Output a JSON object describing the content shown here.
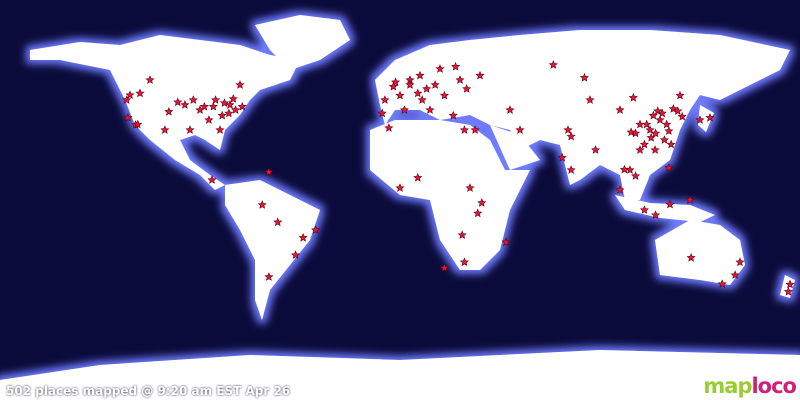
{
  "status_text": "502 places mapped @ 9:20 am EST Apr 26",
  "logo": {
    "part1": "map",
    "part2": "loco"
  },
  "colors": {
    "ocean": "#0b0b3b",
    "land": "#ffffff",
    "glow": "#6f7cff",
    "marker": "#e8173a",
    "logo1": "#9acd32",
    "logo2": "#d0207a"
  },
  "markers_lonlat": [
    [
      -121.5,
      47.2
    ],
    [
      -122.4,
      37
    ],
    [
      -119,
      33.8
    ],
    [
      -112.5,
      54
    ],
    [
      -96.8,
      42.8
    ],
    [
      -90,
      40.5
    ],
    [
      -83,
      45
    ],
    [
      -76.5,
      42.8
    ],
    [
      -74,
      40.5
    ],
    [
      -81,
      31.5
    ],
    [
      -94.5,
      31.5
    ],
    [
      -105.8,
      31.5
    ],
    [
      -72,
      51.8
    ],
    [
      -84.6,
      9
    ],
    [
      -59,
      12.6
    ],
    [
      -88,
      42
    ],
    [
      -80,
      38
    ],
    [
      -77,
      39
    ],
    [
      -71,
      42
    ],
    [
      -86,
      36
    ],
    [
      -118,
      34
    ],
    [
      -123,
      45
    ],
    [
      -104,
      39.7
    ],
    [
      -100,
      44
    ],
    [
      -79,
      43.6
    ],
    [
      -84,
      42
    ],
    [
      -93,
      45
    ],
    [
      -75,
      45.5
    ],
    [
      -117,
      48
    ],
    [
      -62,
      -2.2
    ],
    [
      -55,
      -10
    ],
    [
      -43.6,
      -17
    ],
    [
      -47,
      -24.8
    ],
    [
      -59,
      -34.6
    ],
    [
      -38,
      -13.5
    ],
    [
      4.5,
      54
    ],
    [
      0,
      47
    ],
    [
      4.5,
      51.8
    ],
    [
      9,
      56
    ],
    [
      15.8,
      51.8
    ],
    [
      20,
      47
    ],
    [
      13.5,
      40.5
    ],
    [
      2,
      40.5
    ],
    [
      27,
      54
    ],
    [
      36,
      56
    ],
    [
      -6.8,
      45
    ],
    [
      -5,
      32.4
    ],
    [
      29,
      31.5
    ],
    [
      33.8,
      31.5
    ],
    [
      -2,
      53
    ],
    [
      -3,
      51
    ],
    [
      8,
      48
    ],
    [
      12,
      50
    ],
    [
      18,
      59
    ],
    [
      25,
      60
    ],
    [
      -8,
      39
    ],
    [
      24,
      38
    ],
    [
      30,
      50
    ],
    [
      10,
      45
    ],
    [
      0,
      5.4
    ],
    [
      8,
      10
    ],
    [
      31.5,
      5.4
    ],
    [
      35,
      -6
    ],
    [
      28,
      -15.8
    ],
    [
      29,
      -28
    ],
    [
      20,
      -30.6
    ],
    [
      47.7,
      -19
    ],
    [
      36.8,
      -1.3
    ],
    [
      49.5,
      40.5
    ],
    [
      54,
      31.5
    ],
    [
      69,
      60.8
    ],
    [
      75.6,
      31.5
    ],
    [
      73,
      19
    ],
    [
      77,
      13.5
    ],
    [
      83,
      55
    ],
    [
      85.5,
      45
    ],
    [
      99,
      40.5
    ],
    [
      105,
      46
    ],
    [
      112.5,
      31.5
    ],
    [
      117,
      36
    ],
    [
      119,
      27
    ],
    [
      108,
      22.5
    ],
    [
      114.8,
      22.5
    ],
    [
      126,
      47
    ],
    [
      135,
      36
    ],
    [
      139.5,
      37
    ],
    [
      103.5,
      13.5
    ],
    [
      99,
      4.5
    ],
    [
      110,
      -4.5
    ],
    [
      121.5,
      -2
    ],
    [
      130.5,
      0
    ],
    [
      77,
      28.6
    ],
    [
      88,
      22.5
    ],
    [
      121,
      31
    ],
    [
      116,
      40
    ],
    [
      113,
      28
    ],
    [
      106,
      30
    ],
    [
      120,
      34
    ],
    [
      118,
      39
    ],
    [
      111,
      34
    ],
    [
      115,
      30
    ],
    [
      122,
      25
    ],
    [
      108,
      34
    ],
    [
      114,
      38
    ],
    [
      123,
      41
    ],
    [
      125,
      40
    ],
    [
      104,
      30.5
    ],
    [
      110,
      25
    ],
    [
      121,
      14.5
    ],
    [
      106,
      10.8
    ],
    [
      101,
      13.7
    ],
    [
      127,
      37.5
    ],
    [
      131,
      -26
    ],
    [
      153,
      -28
    ],
    [
      150.8,
      -33.8
    ],
    [
      175.5,
      -38
    ],
    [
      115,
      -6.8
    ],
    [
      145,
      -37.8
    ],
    [
      174.8,
      -41.3
    ]
  ]
}
